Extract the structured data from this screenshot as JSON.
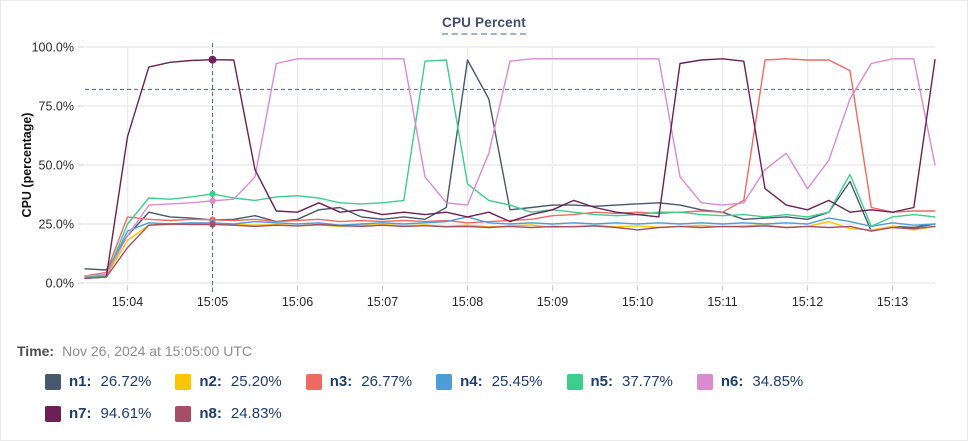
{
  "panel": {
    "title": "CPU Percent"
  },
  "footer": {
    "time_label": "Time:",
    "time_value": "Nov 26, 2024 at 15:05:00 UTC"
  },
  "legend": [
    {
      "name": "n1",
      "value": "26.72%"
    },
    {
      "name": "n2",
      "value": "25.20%"
    },
    {
      "name": "n3",
      "value": "26.77%"
    },
    {
      "name": "n4",
      "value": "25.45%"
    },
    {
      "name": "n5",
      "value": "37.77%"
    },
    {
      "name": "n6",
      "value": "34.85%"
    },
    {
      "name": "n7",
      "value": "94.61%"
    },
    {
      "name": "n8",
      "value": "24.83%"
    }
  ],
  "chart_data": {
    "type": "line",
    "title": "CPU Percent",
    "xlabel": "",
    "ylabel": "CPU (percentage)",
    "ylim": [
      0,
      100
    ],
    "grid": true,
    "y_tick_labels": [
      "0.0%",
      "25.0%",
      "50.0%",
      "75.0%",
      "100.0%"
    ],
    "y_tick_values": [
      0,
      25,
      50,
      75,
      100
    ],
    "x_start": "15:03:30",
    "x_step_seconds": 15,
    "x_tick_labels": [
      "15:04",
      "15:05",
      "15:06",
      "15:07",
      "15:08",
      "15:09",
      "15:10",
      "15:11",
      "15:12",
      "15:13"
    ],
    "crosshair": {
      "time": "15:05:00",
      "x_index": 6,
      "y_percent": 82
    },
    "series": [
      {
        "name": "n1",
        "color": "#47586F",
        "values": [
          6,
          5.5,
          20,
          30,
          28,
          27.5,
          26.72,
          27,
          28.5,
          26,
          27,
          31,
          32,
          28,
          27,
          28,
          27,
          32,
          94.5,
          78,
          31,
          32,
          33,
          33,
          32.5,
          33,
          33.5,
          34,
          33,
          31,
          30,
          27,
          27.5,
          28,
          27,
          30,
          43,
          22,
          24,
          23.5,
          25
        ]
      },
      {
        "name": "n2",
        "color": "#FDC500",
        "values": [
          2.5,
          3,
          18,
          24.5,
          24.8,
          25,
          25.2,
          24.8,
          24.5,
          24.8,
          24.2,
          24.6,
          24,
          24.4,
          24.8,
          24.2,
          24.6,
          24,
          24.5,
          23.8,
          24.2,
          24.6,
          23.5,
          24,
          24.4,
          23.8,
          24.2,
          23.6,
          24,
          24.4,
          23.8,
          24.2,
          24.6,
          23.5,
          24,
          26,
          23,
          22.5,
          24,
          22.5,
          24
        ]
      },
      {
        "name": "n3",
        "color": "#EF6A62",
        "values": [
          3,
          4.5,
          28,
          27,
          26.5,
          27,
          26.77,
          26.5,
          27,
          26,
          26.5,
          27,
          26,
          26.5,
          26,
          26.5,
          26,
          26.5,
          25.5,
          26,
          26.5,
          27,
          28.5,
          29,
          30,
          29.5,
          30,
          29.5,
          30,
          30.5,
          30,
          35,
          94.5,
          95,
          94.5,
          94.5,
          90,
          32,
          30,
          30.5,
          30.5
        ]
      },
      {
        "name": "n4",
        "color": "#4D9ED6",
        "values": [
          3,
          3.5,
          22,
          25.5,
          25,
          25.5,
          25.45,
          25,
          26,
          25.5,
          25,
          25.5,
          24.5,
          25,
          25.5,
          25,
          25.5,
          26,
          28,
          25.5,
          25,
          25.5,
          25,
          25.5,
          25,
          25.5,
          25,
          25.5,
          25,
          25.5,
          25,
          25.5,
          25,
          25.5,
          25,
          27.5,
          26,
          24,
          25.5,
          24.5,
          25
        ]
      },
      {
        "name": "n5",
        "color": "#3DCE8C",
        "values": [
          2.5,
          3,
          25,
          36,
          35.5,
          36.5,
          37.77,
          36,
          35,
          36.5,
          37,
          36,
          34,
          33.5,
          34,
          35,
          94,
          94.5,
          42,
          35,
          33,
          30,
          31,
          30,
          29,
          28.5,
          29,
          30,
          30,
          29,
          28.5,
          29,
          28,
          29,
          28,
          30,
          46,
          24,
          28,
          29,
          28
        ]
      },
      {
        "name": "n6",
        "color": "#DB8AD2",
        "values": [
          3,
          3.5,
          20,
          33,
          33.5,
          34,
          34.85,
          35.5,
          45,
          93,
          95,
          95,
          95,
          95,
          95,
          95,
          45,
          34,
          33,
          55,
          94,
          95,
          95,
          95,
          95,
          95,
          95,
          95,
          45,
          34,
          33,
          34,
          48,
          55,
          40,
          52,
          78,
          93,
          95,
          95,
          50
        ]
      },
      {
        "name": "n7",
        "color": "#6B2158",
        "values": [
          2,
          2.5,
          62,
          91.5,
          93.5,
          94.3,
          94.61,
          94.5,
          48,
          30.5,
          30,
          34,
          30,
          31,
          29,
          30,
          29,
          30,
          28,
          30,
          26,
          29,
          31,
          35,
          32,
          30,
          29,
          28,
          93,
          94.5,
          95,
          94,
          40,
          33,
          31,
          35,
          30,
          31,
          30,
          32,
          94.6
        ]
      },
      {
        "name": "n8",
        "color": "#A64E66",
        "values": [
          2,
          2.5,
          15,
          24.5,
          25,
          24.8,
          24.83,
          24.5,
          24,
          24.5,
          24.2,
          24.8,
          24.3,
          24,
          24.5,
          24,
          24.3,
          23.8,
          24,
          23.5,
          24,
          23.5,
          24,
          23.8,
          24.2,
          23.5,
          22.5,
          23.5,
          24,
          23.5,
          24,
          23.8,
          24.2,
          23.5,
          24,
          23.5,
          24,
          22,
          23.5,
          23,
          24
        ]
      }
    ]
  }
}
